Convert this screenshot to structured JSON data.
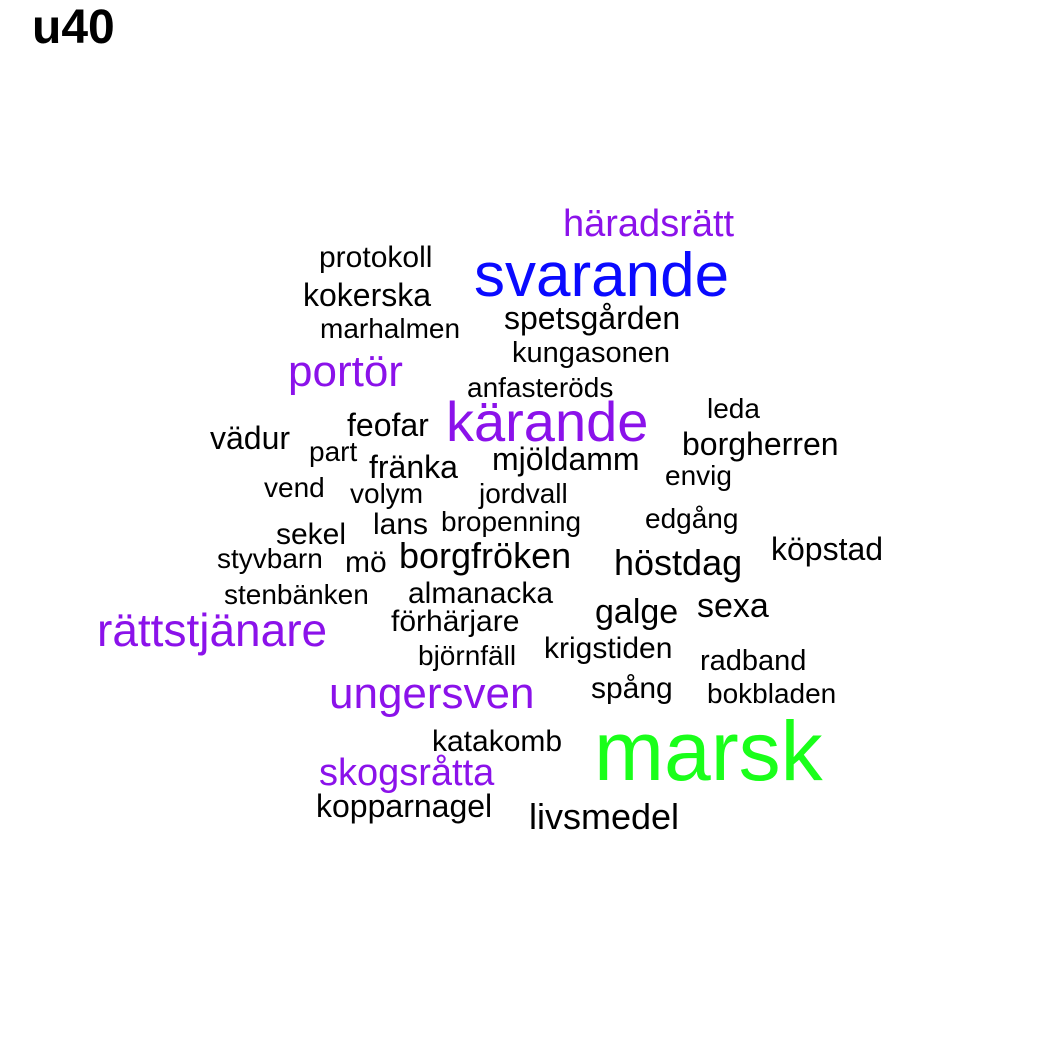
{
  "title": "u40",
  "colors": {
    "black": "#000000",
    "purple": "#8b12ea",
    "blue": "#0a0aff",
    "green": "#1aff1a"
  },
  "words": [
    {
      "text": "marsk",
      "color": "green"
    },
    {
      "text": "svarande",
      "color": "blue"
    },
    {
      "text": "kärande",
      "color": "purple"
    },
    {
      "text": "rättstjänare",
      "color": "purple"
    },
    {
      "text": "ungersven",
      "color": "purple"
    },
    {
      "text": "portör",
      "color": "purple"
    },
    {
      "text": "skogsråtta",
      "color": "purple"
    },
    {
      "text": "häradsrätt",
      "color": "purple"
    },
    {
      "text": "protokoll",
      "color": "black"
    },
    {
      "text": "kokerska",
      "color": "black"
    },
    {
      "text": "marhalmen",
      "color": "black"
    },
    {
      "text": "spetsgården",
      "color": "black"
    },
    {
      "text": "kungasonen",
      "color": "black"
    },
    {
      "text": "anfasteröds",
      "color": "black"
    },
    {
      "text": "leda",
      "color": "black"
    },
    {
      "text": "vädur",
      "color": "black"
    },
    {
      "text": "feofar",
      "color": "black"
    },
    {
      "text": "part",
      "color": "black"
    },
    {
      "text": "borgherren",
      "color": "black"
    },
    {
      "text": "fränka",
      "color": "black"
    },
    {
      "text": "mjöldamm",
      "color": "black"
    },
    {
      "text": "envig",
      "color": "black"
    },
    {
      "text": "vend",
      "color": "black"
    },
    {
      "text": "volym",
      "color": "black"
    },
    {
      "text": "jordvall",
      "color": "black"
    },
    {
      "text": "sekel",
      "color": "black"
    },
    {
      "text": "lans",
      "color": "black"
    },
    {
      "text": "bropenning",
      "color": "black"
    },
    {
      "text": "edgång",
      "color": "black"
    },
    {
      "text": "styvbarn",
      "color": "black"
    },
    {
      "text": "mö",
      "color": "black"
    },
    {
      "text": "borgfröken",
      "color": "black"
    },
    {
      "text": "höstdag",
      "color": "black"
    },
    {
      "text": "köpstad",
      "color": "black"
    },
    {
      "text": "stenbänken",
      "color": "black"
    },
    {
      "text": "almanacka",
      "color": "black"
    },
    {
      "text": "galge",
      "color": "black"
    },
    {
      "text": "sexa",
      "color": "black"
    },
    {
      "text": "förhärjare",
      "color": "black"
    },
    {
      "text": "björnfäll",
      "color": "black"
    },
    {
      "text": "krigstiden",
      "color": "black"
    },
    {
      "text": "radband",
      "color": "black"
    },
    {
      "text": "spång",
      "color": "black"
    },
    {
      "text": "bokbladen",
      "color": "black"
    },
    {
      "text": "katakomb",
      "color": "black"
    },
    {
      "text": "kopparnagel",
      "color": "black"
    },
    {
      "text": "livsmedel",
      "color": "black"
    }
  ]
}
